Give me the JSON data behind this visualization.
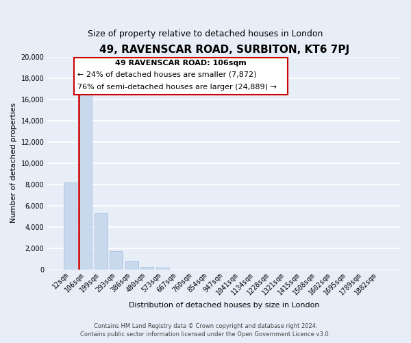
{
  "title": "49, RAVENSCAR ROAD, SURBITON, KT6 7PJ",
  "subtitle": "Size of property relative to detached houses in London",
  "xlabel": "Distribution of detached houses by size in London",
  "ylabel": "Number of detached properties",
  "bar_labels": [
    "12sqm",
    "106sqm",
    "199sqm",
    "293sqm",
    "386sqm",
    "480sqm",
    "573sqm",
    "667sqm",
    "760sqm",
    "854sqm",
    "947sqm",
    "1041sqm",
    "1134sqm",
    "1228sqm",
    "1321sqm",
    "1415sqm",
    "1508sqm",
    "1602sqm",
    "1695sqm",
    "1789sqm",
    "1882sqm"
  ],
  "bar_values": [
    8200,
    16600,
    5300,
    1750,
    780,
    230,
    150,
    0,
    0,
    0,
    0,
    0,
    0,
    0,
    0,
    0,
    0,
    0,
    0,
    0,
    0
  ],
  "bar_color": "#c8d9ee",
  "bar_edge_color": "#a0b8d8",
  "annotation_title": "49 RAVENSCAR ROAD: 106sqm",
  "annotation_line1": "← 24% of detached houses are smaller (7,872)",
  "annotation_line2": "76% of semi-detached houses are larger (24,889) →",
  "annotation_box_color": "#ffffff",
  "annotation_box_edgecolor": "#cc0000",
  "ylim": [
    0,
    20000
  ],
  "yticks": [
    0,
    2000,
    4000,
    6000,
    8000,
    10000,
    12000,
    14000,
    16000,
    18000,
    20000
  ],
  "footer1": "Contains HM Land Registry data © Crown copyright and database right 2024.",
  "footer2": "Contains public sector information licensed under the Open Government Licence v3.0.",
  "bg_color": "#e8eef8",
  "plot_bg_color": "#e8eef8",
  "grid_color": "#ffffff",
  "vline_color": "#cc0000",
  "title_fontsize": 11,
  "subtitle_fontsize": 9,
  "axis_label_fontsize": 8,
  "tick_fontsize": 7,
  "annotation_fontsize": 8,
  "footer_fontsize": 6
}
